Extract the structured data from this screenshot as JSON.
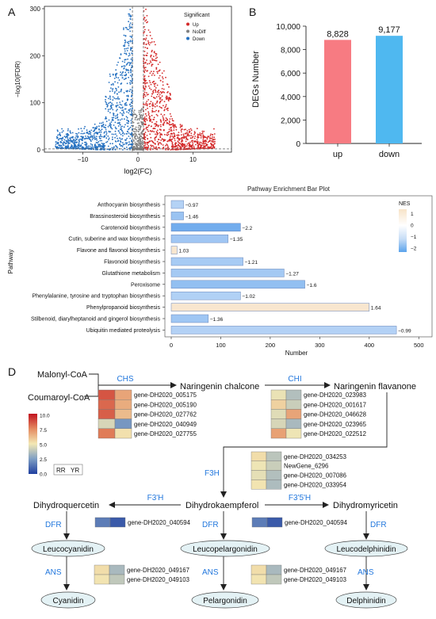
{
  "panels": {
    "a": "A",
    "b": "B",
    "c": "C",
    "d": "D"
  },
  "chart_data": [
    {
      "type": "scatter",
      "xlabel": "log2(FC)",
      "ylabel": "−log10(FDR)",
      "xlim": [
        -17,
        17
      ],
      "ylim": [
        -5,
        305
      ],
      "xticks": [
        -10,
        0,
        10
      ],
      "yticks": [
        0,
        100,
        200,
        300
      ],
      "legend_title": "Significant",
      "legend_position": "top-right",
      "legend": [
        {
          "name": "Up",
          "color": "#d42a2a"
        },
        {
          "name": "NoDiff",
          "color": "#808080"
        },
        {
          "name": "Down",
          "color": "#2470c0"
        }
      ],
      "fc_threshold": 1,
      "fdr_threshold_line": 2
    },
    {
      "type": "bar",
      "categories": [
        "up",
        "down"
      ],
      "values": [
        8828,
        9177
      ],
      "value_labels": [
        "8,828",
        "9,177"
      ],
      "colors": [
        "#f77b82",
        "#4fb8f0"
      ],
      "ylabel": "DEGs Number",
      "ylim": [
        0,
        10000
      ],
      "yticks": [
        "0",
        "2,000",
        "4,000",
        "6,000",
        "8,000",
        "10,000"
      ]
    },
    {
      "type": "bar",
      "orientation": "horizontal",
      "title": "Pathway Enrichment Bar Plot",
      "xlabel": "Number",
      "ylabel": "Pathway",
      "xlim": [
        0,
        500
      ],
      "xticks": [
        0,
        100,
        200,
        300,
        400,
        500
      ],
      "legend_title": "NES",
      "legend_ticks": [
        "1",
        "0",
        "−1",
        "−2"
      ],
      "categories": [
        "Anthocyanin biosynthesis",
        "Brassinosteroid biosynthesis",
        "Carotenoid biosynthesis",
        "Cutin, suberine and wax biosynthesis",
        "Flavone and flavonol biosynthesis",
        "Flavonoid biosynthesis",
        "Glutathione metabolism",
        "Peroxisome",
        "Phenylalanine, tyrosine and tryptophan biosynthesis",
        "Phenylpropanoid biosynthesis",
        "Stilbenoid, diarylheptanoid and gingerol biosynthesis",
        "Ubiquitin mediated proteolysis"
      ],
      "values": [
        25,
        25,
        140,
        115,
        12,
        145,
        228,
        270,
        140,
        400,
        75,
        455
      ],
      "nes": [
        -0.97,
        -1.46,
        -2.2,
        -1.35,
        1.03,
        -1.21,
        -1.27,
        -1.6,
        -1.02,
        1.64,
        -1.36,
        -0.99
      ],
      "nes_labels": [
        "−0.97",
        "−1.46",
        "−2.2",
        "−1.35",
        "1.03",
        "−1.21",
        "−1.27",
        "−1.6",
        "−1.02",
        "1.64",
        "−1.36",
        "−0.99"
      ]
    },
    {
      "type": "heatmap",
      "colorbar_ticks": [
        "10.0",
        "7.5",
        "5.0",
        "2.5",
        "0.0"
      ],
      "columns": [
        "RR",
        "YR"
      ],
      "compounds": {
        "malonyl": "Malonyl-CoA",
        "coumaroyl": "Coumaroyl-CoA",
        "chalcone": "Naringenin chalcone",
        "flavanone": "Naringenin flavanone",
        "dihydroquercetin": "Dihydroquercetin",
        "dihydrokaempferol": "Dihydrokaempferol",
        "dihydromyricetin": "Dihydromyricetin",
        "leucocyanidin": "Leucocyanidin",
        "leucopelargonidin": "Leucopelargonidin",
        "leucodelphinidin": "Leucodelphinidin",
        "cyanidin": "Cyanidin",
        "pelargonidin": "Pelargonidin",
        "delphinidin": "Delphinidin"
      },
      "enzymes": {
        "chs": "CHS",
        "chi": "CHI",
        "f3h": "F3H",
        "f3ph": "F3'H",
        "f35h": "F3'5'H",
        "dfr": "DFR",
        "ans": "ANS"
      },
      "blocks": {
        "chs": {
          "genes": [
            "gene-DH2020_005175",
            "gene-DH2020_005190",
            "gene-DH2020_027762",
            "gene-DH2020_040949",
            "gene-DH2020_027755"
          ],
          "values": [
            [
              8.6,
              6.8
            ],
            [
              8.2,
              6.6
            ],
            [
              8.4,
              6.2
            ],
            [
              4.4,
              2.3
            ],
            [
              7.8,
              5.2
            ]
          ]
        },
        "chi": {
          "genes": [
            "gene-DH2020_023983",
            "gene-DH2020_001617",
            "gene-DH2020_046628",
            "gene-DH2020_023965",
            "gene-DH2020_022512"
          ],
          "values": [
            [
              4.8,
              3.6
            ],
            [
              5.6,
              4.1
            ],
            [
              4.6,
              6.8
            ],
            [
              4.4,
              3.4
            ],
            [
              6.9,
              4.9
            ]
          ]
        },
        "f3h": {
          "genes": [
            "gene-DH2020_034253",
            "NewGene_6296",
            "gene-DH2020_007086",
            "gene-DH2020_033954"
          ],
          "values": [
            [
              5.3,
              3.8
            ],
            [
              4.9,
              4.1
            ],
            [
              4.7,
              3.6
            ],
            [
              5.1,
              3.5
            ]
          ]
        },
        "dfr1": {
          "genes": [
            "gene-DH2020_040594"
          ],
          "values": [
            [
              1.6,
              0.7
            ]
          ]
        },
        "dfr2": {
          "genes": [
            "gene-DH2020_040594"
          ],
          "values": [
            [
              1.6,
              0.7
            ]
          ]
        },
        "ans1": {
          "genes": [
            "gene-DH2020_049167",
            "gene-DH2020_049103"
          ],
          "values": [
            [
              5.3,
              3.4
            ],
            [
              5.1,
              3.9
            ]
          ]
        },
        "ans2": {
          "genes": [
            "gene-DH2020_049167",
            "gene-DH2020_049103"
          ],
          "values": [
            [
              5.3,
              3.4
            ],
            [
              5.1,
              3.9
            ]
          ]
        }
      }
    }
  ]
}
